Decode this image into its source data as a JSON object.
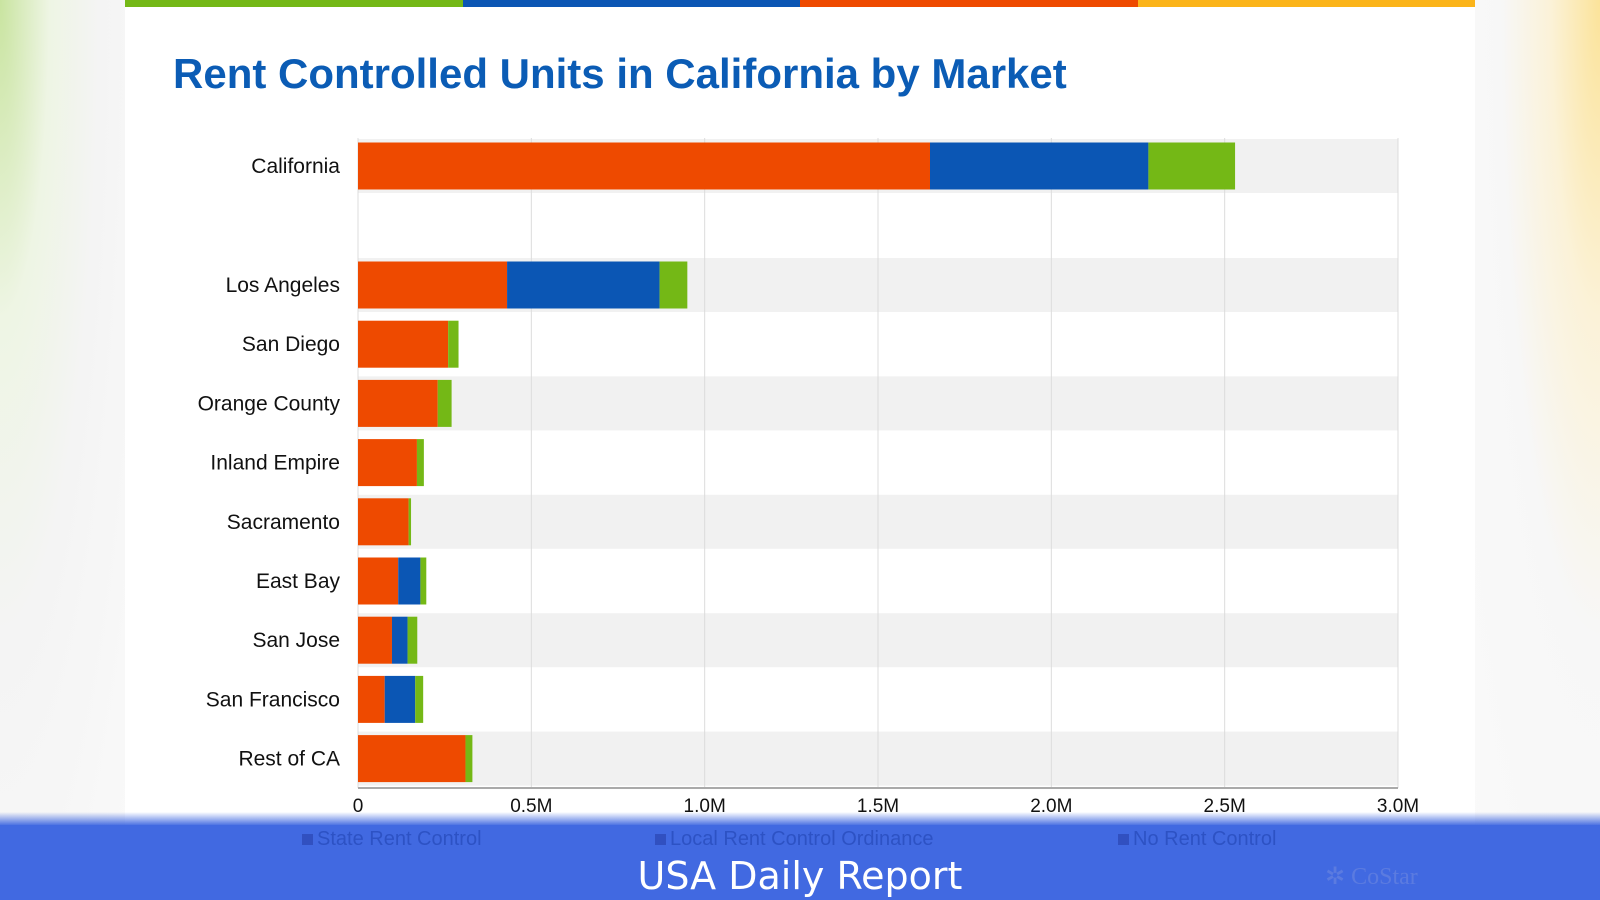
{
  "title": "Rent Controlled Units in California by Market",
  "banner_text": "USA Daily Report",
  "logo_text": "CoStar",
  "strip_colors": [
    "#74b816",
    "#0b56b4",
    "#ee4a00",
    "#fbb41a"
  ],
  "chart_data": {
    "type": "bar",
    "orientation": "horizontal",
    "stacked": true,
    "title": "Rent Controlled Units in California by Market",
    "categories": [
      "California",
      "Los Angeles",
      "San Diego",
      "Orange County",
      "Inland Empire",
      "Sacramento",
      "East Bay",
      "San Jose",
      "San Francisco",
      "Rest of CA"
    ],
    "series": [
      {
        "name": "State Rent Control",
        "color": "#ee4a00",
        "values": [
          1.65,
          0.43,
          0.26,
          0.23,
          0.17,
          0.146,
          0.116,
          0.098,
          0.077,
          0.31
        ]
      },
      {
        "name": "Local Rent Control Ordinance",
        "color": "#0b56b4",
        "values": [
          0.63,
          0.44,
          0,
          0,
          0,
          0,
          0.064,
          0.045,
          0.088,
          0
        ]
      },
      {
        "name": "No Rent Control",
        "color": "#74b816",
        "values": [
          0.25,
          0.08,
          0.03,
          0.04,
          0.02,
          0.007,
          0.017,
          0.028,
          0.023,
          0.02
        ]
      }
    ],
    "units": "millions of units",
    "xlim": [
      0,
      3.0
    ],
    "xticks": [
      0,
      0.5,
      1.0,
      1.5,
      2.0,
      2.5,
      3.0
    ],
    "xtick_labels": [
      "0",
      "0.5M",
      "1.0M",
      "1.5M",
      "2.0M",
      "2.5M",
      "3.0M"
    ],
    "grid": true,
    "legend_position": "bottom"
  }
}
